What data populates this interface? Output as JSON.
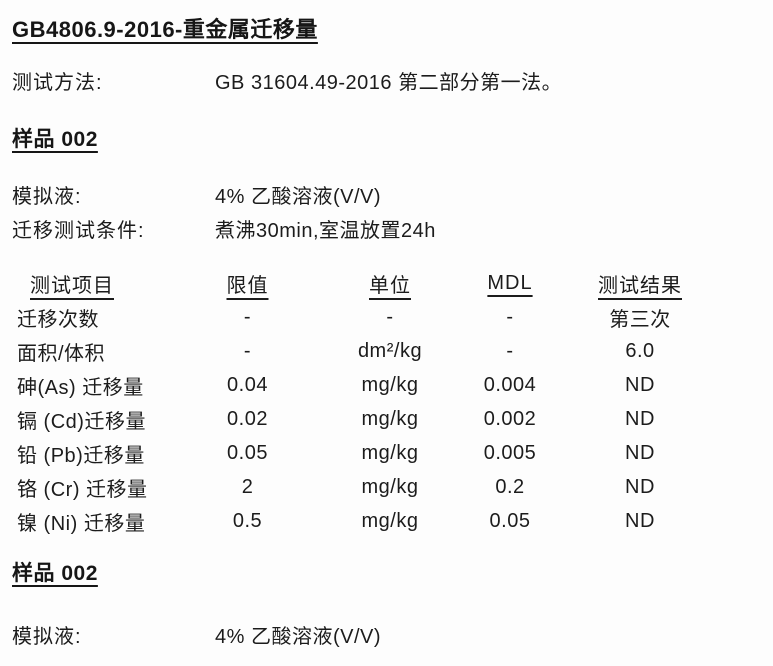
{
  "document": {
    "title": "GB4806.9-2016-重金属迁移量"
  },
  "test_method": {
    "label": "测试方法:",
    "value": "GB 31604.49-2016 第二部分第一法。"
  },
  "sample1": {
    "heading": "样品 002",
    "simulant": {
      "label": "模拟液:",
      "value": "4% 乙酸溶液(V/V)"
    },
    "condition": {
      "label": "迁移测试条件:",
      "value": "煮沸30min,室温放置24h"
    },
    "table": {
      "headers": [
        "测试项目",
        "限值",
        "单位",
        "MDL",
        "测试结果"
      ],
      "rows": [
        [
          "迁移次数",
          "-",
          "-",
          "-",
          "第三次"
        ],
        [
          "面积/体积",
          "-",
          "dm²/kg",
          "-",
          "6.0"
        ],
        [
          "砷(As) 迁移量",
          "0.04",
          "mg/kg",
          "0.004",
          "ND"
        ],
        [
          "镉 (Cd)迁移量",
          "0.02",
          "mg/kg",
          "0.002",
          "ND"
        ],
        [
          "铅 (Pb)迁移量",
          "0.05",
          "mg/kg",
          "0.005",
          "ND"
        ],
        [
          "铬 (Cr) 迁移量",
          "2",
          "mg/kg",
          "0.2",
          "ND"
        ],
        [
          "镍 (Ni) 迁移量",
          "0.5",
          "mg/kg",
          "0.05",
          "ND"
        ]
      ]
    }
  },
  "sample2": {
    "heading": "样品 002",
    "simulant": {
      "label": "模拟液:",
      "value": "4% 乙酸溶液(V/V)"
    }
  }
}
